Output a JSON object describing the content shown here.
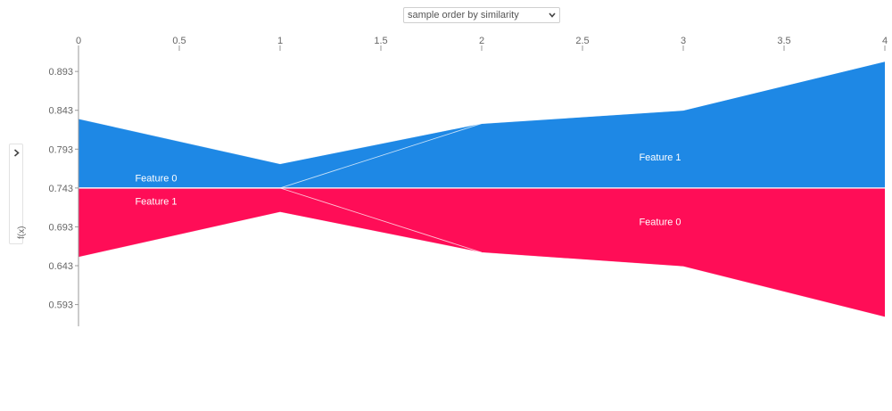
{
  "controls": {
    "order_select": {
      "value": "sample order by similarity",
      "arrow_icon": "chevron-down-icon"
    },
    "side_toggle": {
      "chevron_icon": "chevron-right-icon",
      "label": "f(x)"
    }
  },
  "chart_data": {
    "type": "area",
    "x": [
      0,
      1,
      2,
      3,
      4
    ],
    "x_ticks": [
      "0",
      "0.5",
      "1",
      "1.5",
      "2",
      "2.5",
      "3",
      "3.5",
      "4"
    ],
    "x_tick_values": [
      0,
      0.5,
      1,
      1.5,
      2,
      2.5,
      3,
      3.5,
      4
    ],
    "y_ticks": [
      "0.893",
      "0.843",
      "0.793",
      "0.743",
      "0.693",
      "0.643",
      "0.593"
    ],
    "y_tick_values": [
      0.893,
      0.843,
      0.793,
      0.743,
      0.693,
      0.643,
      0.593
    ],
    "base_value": 0.743,
    "xlim": [
      0,
      4
    ],
    "ylim": [
      0.565,
      0.923
    ],
    "positive_color": "#1E88E5",
    "negative_color": "#FF0D57",
    "upper_boundary": [
      0.832,
      0.774,
      0.826,
      0.843,
      0.906
    ],
    "divider": [
      0.743,
      0.743,
      0.826,
      0.843,
      0.906
    ],
    "lower_boundary": [
      0.654,
      0.712,
      0.66,
      0.642,
      0.577
    ],
    "labels": [
      {
        "text": "Feature 0",
        "x": 0.385,
        "y": 0.756
      },
      {
        "text": "Feature 1",
        "x": 0.385,
        "y": 0.726
      },
      {
        "text": "Feature 1",
        "x": 2.885,
        "y": 0.783
      },
      {
        "text": "Feature 0",
        "x": 2.885,
        "y": 0.7
      }
    ]
  }
}
